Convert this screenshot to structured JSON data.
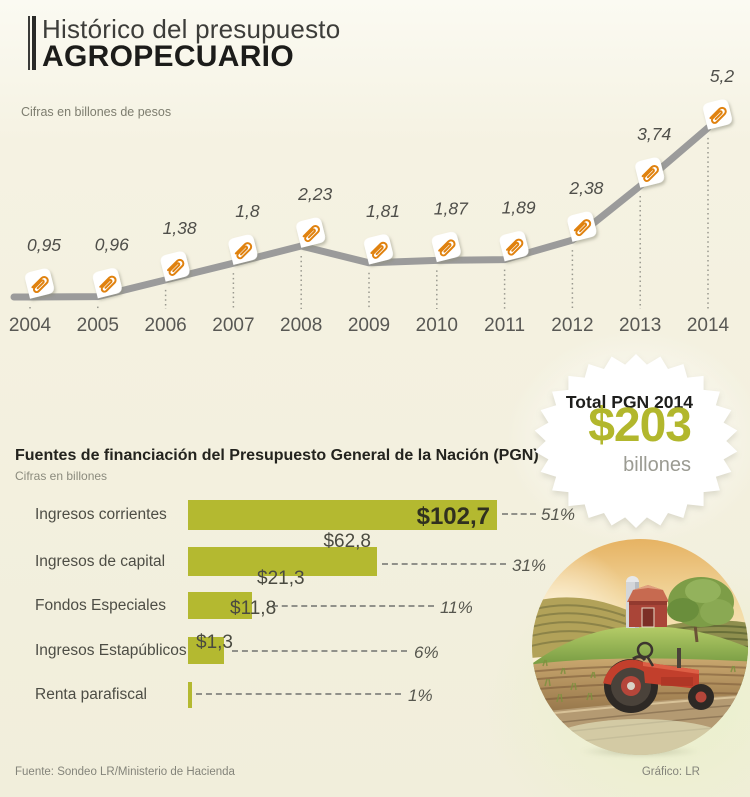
{
  "header": {
    "title_line1": "Histórico del presupuesto",
    "title_line2": "AGROPECUARIO",
    "units_note": "Cifras en billones de pesos"
  },
  "badge": {
    "title": "Total PGN 2014",
    "amount": "$203",
    "unit": "billones",
    "amount_color": "#b2b72d"
  },
  "bar_section": {
    "title": "Fuentes de financiación del Presupuesto General de la Nación (PGN)",
    "units_note": "Cifras en billones"
  },
  "footer": {
    "source": "Fuente: Sondeo LR/Ministerio de Hacienda",
    "credit": "Gráfico: LR"
  },
  "chart_data": [
    {
      "type": "line",
      "title": "Histórico del presupuesto agropecuario",
      "units": "Cifras en billones de pesos",
      "x": [
        "2004",
        "2005",
        "2006",
        "2007",
        "2008",
        "2009",
        "2010",
        "2011",
        "2012",
        "2013",
        "2014"
      ],
      "values": [
        0.95,
        0.96,
        1.38,
        1.8,
        2.23,
        1.81,
        1.87,
        1.89,
        2.38,
        3.74,
        5.2
      ],
      "value_labels": [
        "0,95",
        "0,96",
        "1,38",
        "1,8",
        "2,23",
        "1,81",
        "1,87",
        "1,89",
        "2,38",
        "3,74",
        "5,2"
      ],
      "marker": "paperclip-icon",
      "line_color": "#9b9b9b",
      "marker_color": "#e0820f",
      "grid": false,
      "legend": false
    },
    {
      "type": "bar",
      "title": "Fuentes de financiación del Presupuesto General de la Nación (PGN)",
      "units": "Cifras en billones",
      "categories": [
        "Ingresos corrientes",
        "Ingresos de capital",
        "Fondos Especiales",
        "Ingresos Estapúblicos",
        "Renta parafiscal"
      ],
      "values": [
        102.7,
        62.8,
        21.3,
        11.8,
        1.3
      ],
      "value_labels": [
        "$102,7",
        "$62,8",
        "$21,3",
        "$11,8",
        "$1,3"
      ],
      "percent_labels": [
        "51%",
        "31%",
        "11%",
        "6%",
        "1%"
      ],
      "bar_color": "#b4b930",
      "xlim": [
        0,
        110
      ],
      "total_reference": 203,
      "grid": false,
      "legend": false
    }
  ]
}
